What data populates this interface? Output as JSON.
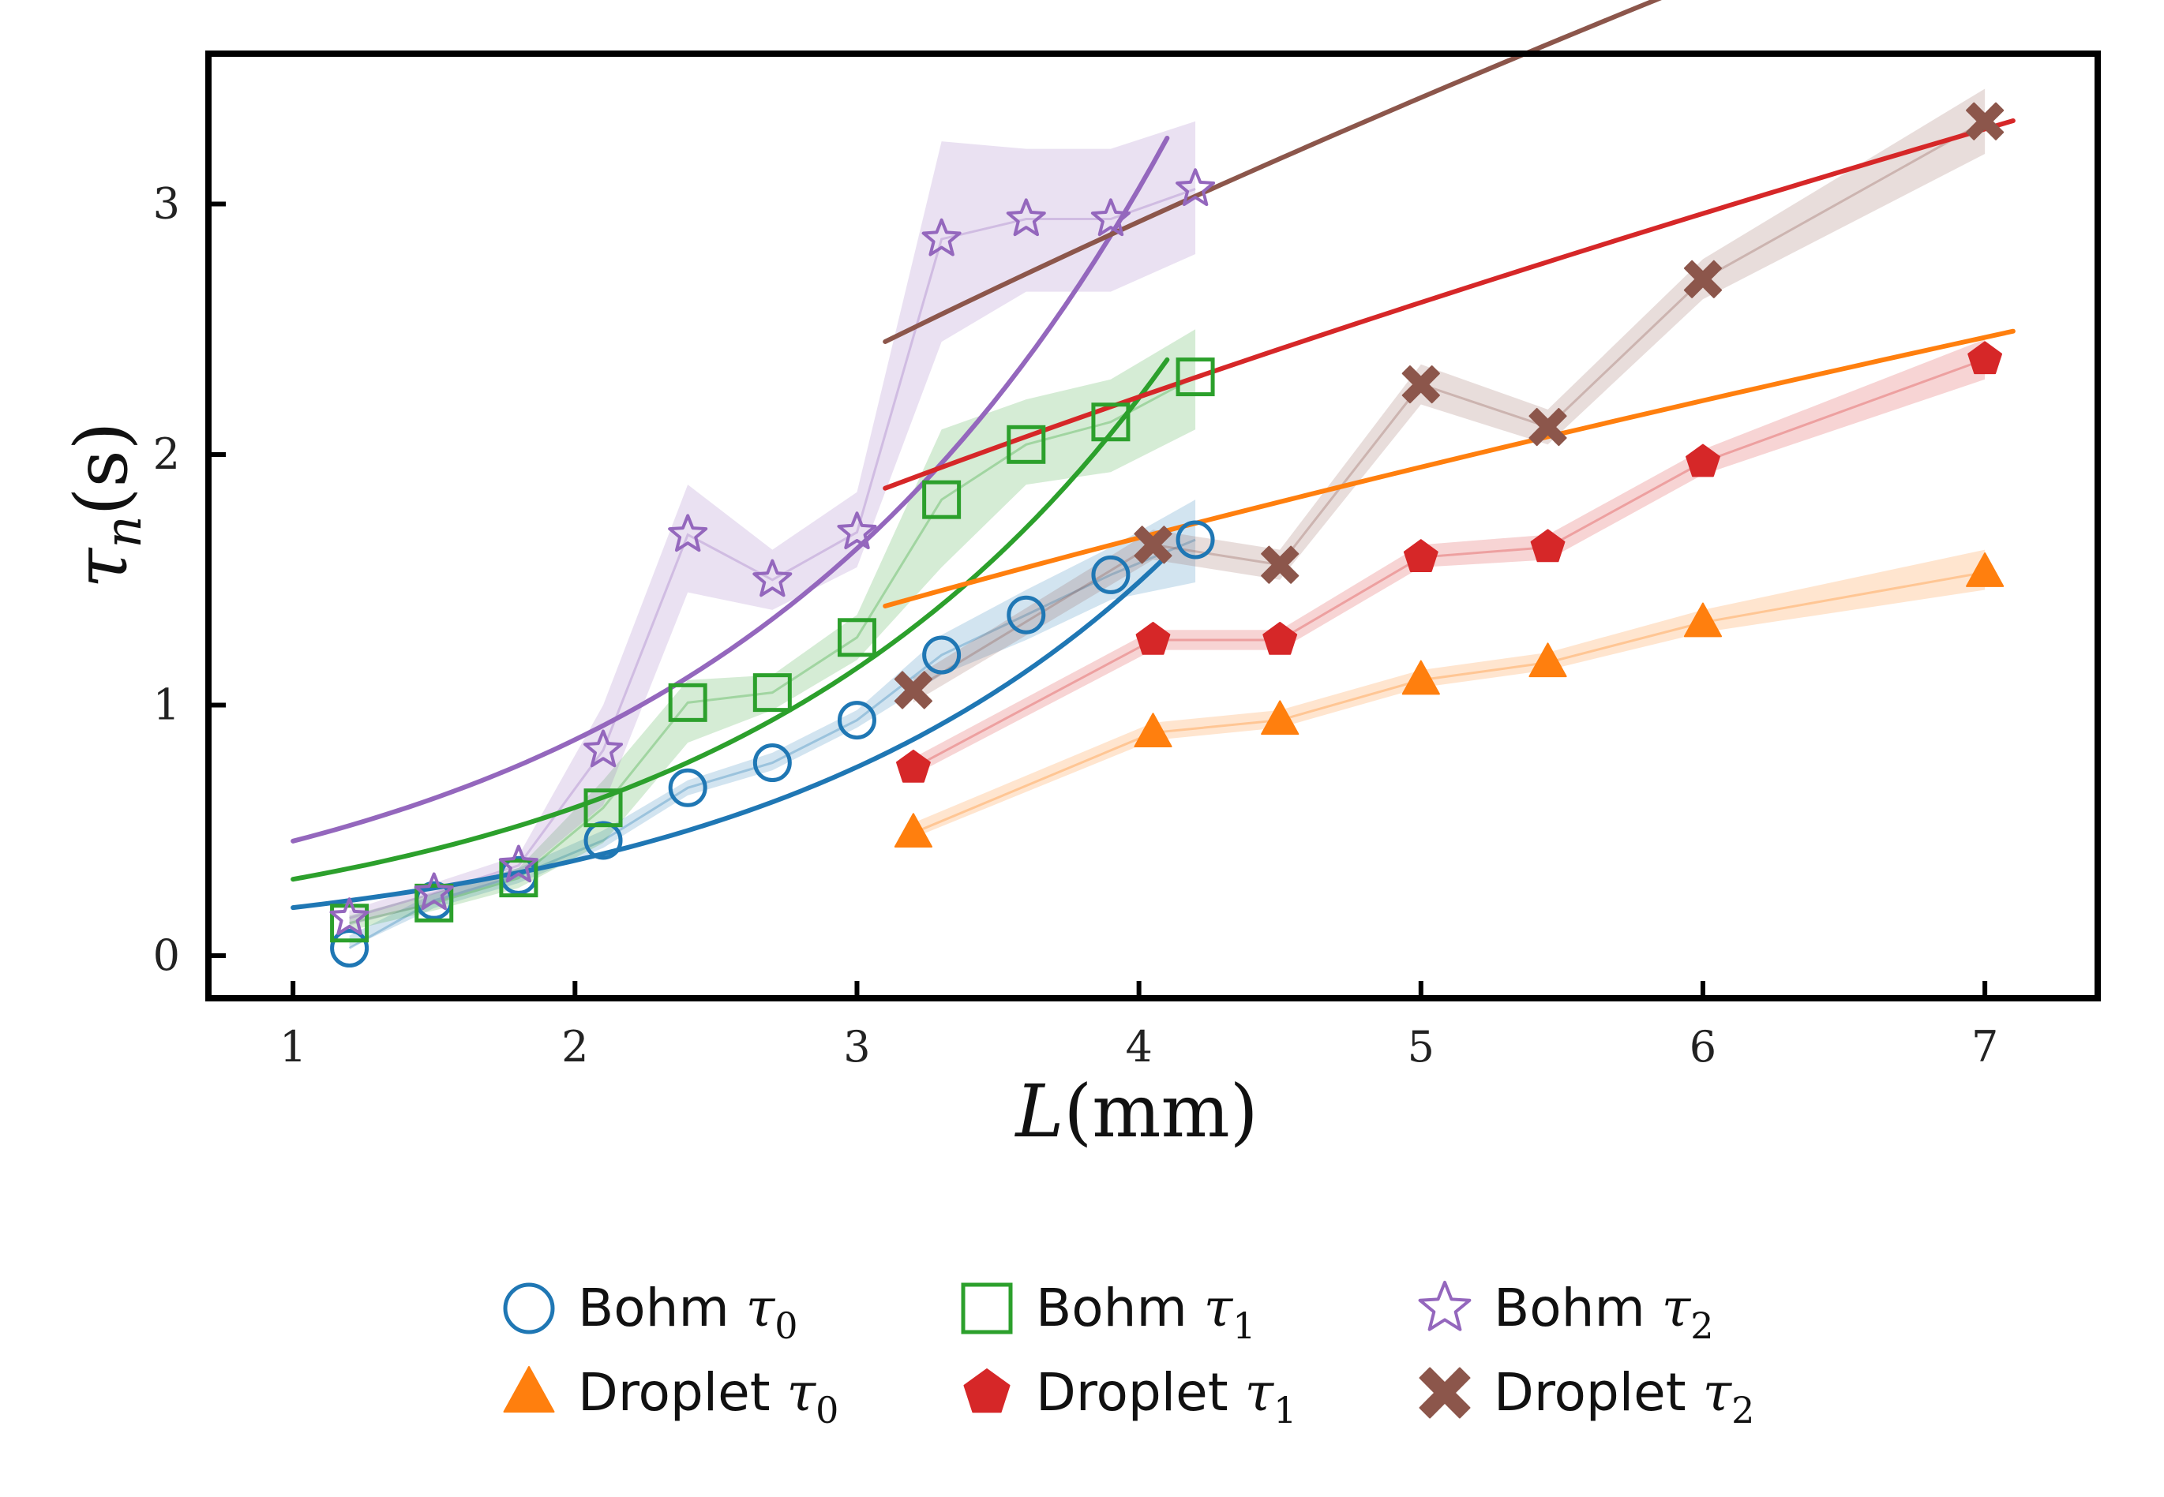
{
  "chart_data": {
    "type": "scatter",
    "title": "",
    "xlabel": {
      "italic": "L",
      "rest": "(mm)"
    },
    "ylabel": {
      "symbol": "τ",
      "sub": "n",
      "rest": "(s)"
    },
    "xlim": [
      0.7,
      7.4
    ],
    "ylim": [
      -0.17,
      3.6
    ],
    "xticks": [
      1,
      2,
      3,
      4,
      5,
      6,
      7
    ],
    "yticks": [
      0,
      1,
      2,
      3
    ],
    "grid": false,
    "legend_position": "bottom",
    "series": [
      {
        "name": "Bohm τ0",
        "label_main": "Bohm ",
        "label_sym": "τ",
        "label_sub": "0",
        "marker": "circle",
        "filled": false,
        "color": "#1f77b4",
        "x": [
          1.2,
          1.5,
          1.8,
          2.1,
          2.4,
          2.7,
          3.0,
          3.3,
          3.6,
          3.9,
          4.2
        ],
        "y": [
          0.03,
          0.22,
          0.32,
          0.46,
          0.67,
          0.77,
          0.94,
          1.2,
          1.36,
          1.52,
          1.66
        ],
        "band_lo": [
          0.03,
          0.19,
          0.29,
          0.43,
          0.64,
          0.74,
          0.91,
          1.12,
          1.26,
          1.42,
          1.49
        ],
        "band_hi": [
          0.08,
          0.25,
          0.35,
          0.5,
          0.7,
          0.81,
          0.98,
          1.28,
          1.46,
          1.63,
          1.82
        ],
        "fit_x": [
          1.0,
          4.1
        ],
        "fit_a": 0.0968,
        "fit_b": 0.6837
      },
      {
        "name": "Bohm τ1",
        "label_main": "Bohm ",
        "label_sym": "τ",
        "label_sub": "1",
        "marker": "square",
        "filled": false,
        "color": "#2ca02c",
        "x": [
          1.2,
          1.5,
          1.8,
          2.1,
          2.4,
          2.7,
          3.0,
          3.3,
          3.6,
          3.9,
          4.2
        ],
        "y": [
          0.13,
          0.21,
          0.31,
          0.59,
          1.01,
          1.05,
          1.27,
          1.82,
          2.04,
          2.13,
          2.31
        ],
        "band_lo": [
          0.1,
          0.18,
          0.27,
          0.45,
          0.85,
          0.98,
          1.18,
          1.55,
          1.88,
          1.93,
          2.1
        ],
        "band_hi": [
          0.16,
          0.25,
          0.35,
          0.7,
          1.1,
          1.12,
          1.36,
          2.1,
          2.22,
          2.3,
          2.5
        ],
        "fit_x": [
          1.0,
          4.1
        ],
        "fit_a": 0.1572,
        "fit_b": 0.6626
      },
      {
        "name": "Bohm τ2",
        "label_main": "Bohm ",
        "label_sym": "τ",
        "label_sub": "2",
        "marker": "star",
        "filled": false,
        "color": "#9467bd",
        "x": [
          1.2,
          1.5,
          1.8,
          2.1,
          2.4,
          2.7,
          3.0,
          3.3,
          3.6,
          3.9,
          4.2
        ],
        "y": [
          0.15,
          0.25,
          0.36,
          0.82,
          1.68,
          1.5,
          1.69,
          2.86,
          2.94,
          2.94,
          3.06
        ],
        "band_lo": [
          0.12,
          0.21,
          0.32,
          0.6,
          1.45,
          1.38,
          1.55,
          2.45,
          2.65,
          2.65,
          2.8
        ],
        "band_hi": [
          0.18,
          0.29,
          0.4,
          1.0,
          1.88,
          1.62,
          1.85,
          3.25,
          3.22,
          3.22,
          3.33
        ],
        "fit_x": [
          1.0,
          4.1
        ],
        "fit_a": 0.2426,
        "fit_b": 0.6339
      },
      {
        "name": "Droplet τ0",
        "label_main": "Droplet ",
        "label_sym": "τ",
        "label_sub": "0",
        "marker": "triangle",
        "filled": true,
        "color": "#ff7f0e",
        "x": [
          3.2,
          4.05,
          4.5,
          5.0,
          5.45,
          6.0,
          7.0
        ],
        "y": [
          0.49,
          0.89,
          0.94,
          1.1,
          1.17,
          1.33,
          1.53
        ],
        "band_lo": [
          0.47,
          0.86,
          0.91,
          1.07,
          1.14,
          1.29,
          1.46
        ],
        "band_hi": [
          0.53,
          0.93,
          0.98,
          1.14,
          1.21,
          1.38,
          1.62
        ],
        "fit_x": [
          3.1,
          7.1
        ],
        "fit_a": 0.632,
        "fit_b": 0.0
      },
      {
        "name": "Droplet τ1",
        "label_main": "Droplet ",
        "label_sym": "τ",
        "label_sub": "1",
        "marker": "pentagon",
        "filled": true,
        "color": "#d62728",
        "x": [
          3.2,
          4.05,
          4.5,
          5.0,
          5.45,
          6.0,
          7.0
        ],
        "y": [
          0.75,
          1.26,
          1.26,
          1.59,
          1.63,
          1.97,
          2.38
        ],
        "band_lo": [
          0.72,
          1.22,
          1.22,
          1.55,
          1.58,
          1.92,
          2.3
        ],
        "band_hi": [
          0.79,
          1.3,
          1.3,
          1.64,
          1.68,
          2.02,
          2.46
        ],
        "fit_x": [
          3.1,
          7.1
        ],
        "fit_a": 0.845,
        "fit_b": 0.0
      },
      {
        "name": "Droplet τ2",
        "label_main": "Droplet ",
        "label_sym": "τ",
        "label_sub": "2",
        "marker": "cross",
        "filled": true,
        "color": "#8c564b",
        "x": [
          3.2,
          4.05,
          4.5,
          5.0,
          5.45,
          6.0,
          7.0
        ],
        "y": [
          1.06,
          1.64,
          1.56,
          2.28,
          2.11,
          2.7,
          3.33
        ],
        "band_lo": [
          1.01,
          1.58,
          1.5,
          2.2,
          2.04,
          2.62,
          3.2
        ],
        "band_hi": [
          1.11,
          1.7,
          1.62,
          2.36,
          2.18,
          2.78,
          3.46
        ],
        "fit_x": [
          3.1,
          7.1
        ],
        "fit_a": 1.11,
        "fit_b": 0.0
      }
    ]
  }
}
